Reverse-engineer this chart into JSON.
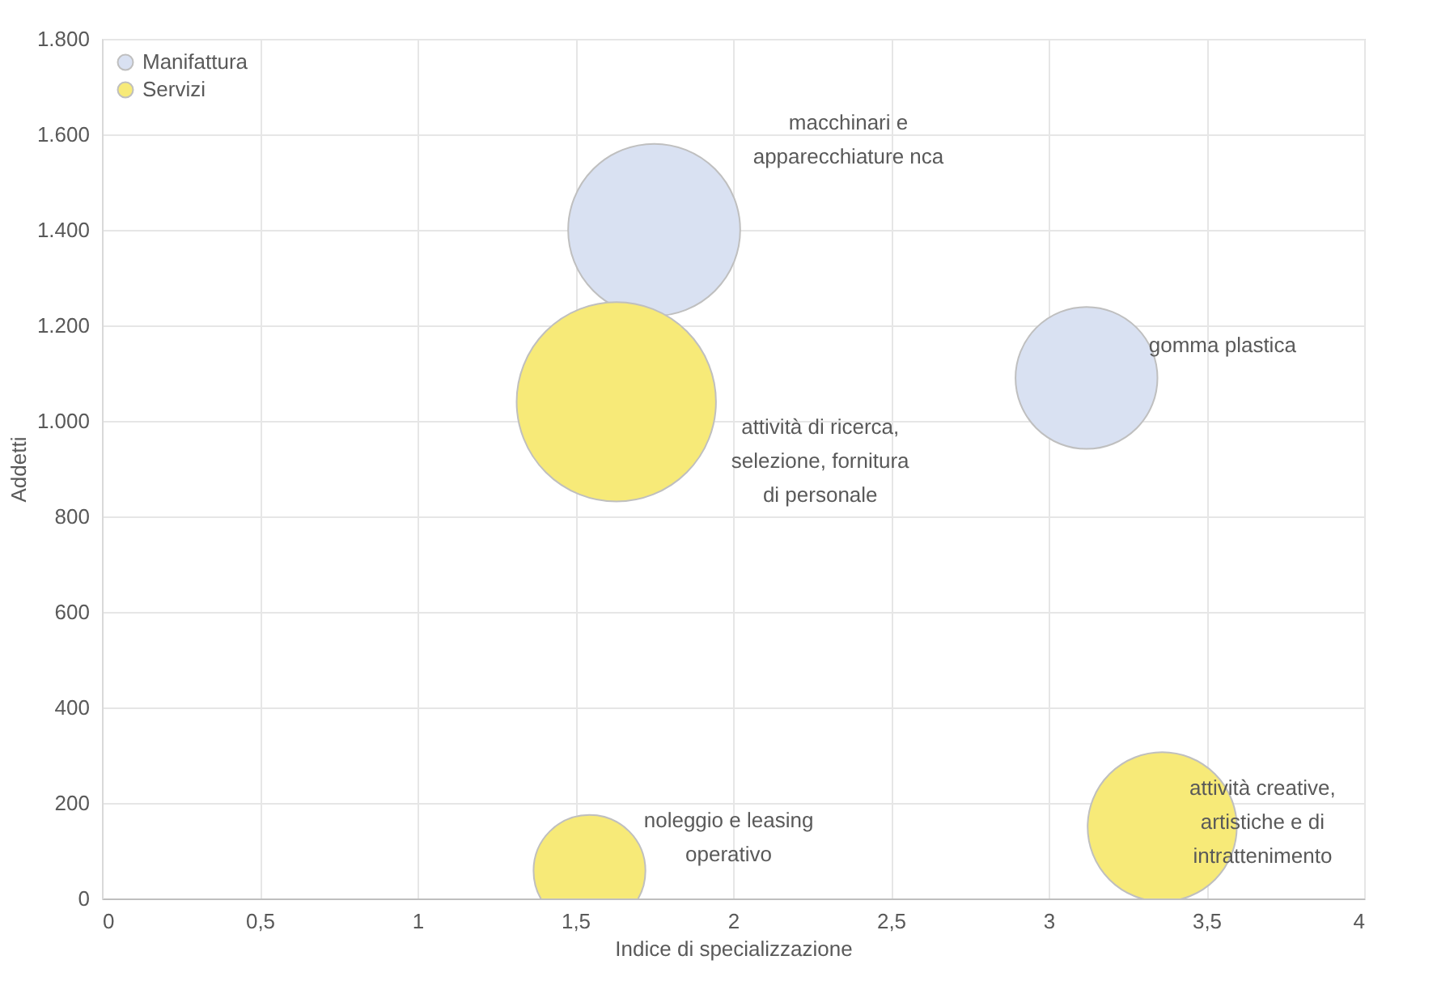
{
  "chart_data": {
    "type": "bubble",
    "xlabel": "Indice di specializzazione",
    "ylabel": "Addetti",
    "xlim": [
      0,
      4
    ],
    "xticks": [
      0,
      {
        "value": 0.5,
        "label": "0,5"
      },
      1,
      {
        "value": 1.5,
        "label": "1,5"
      },
      2,
      {
        "value": 2.5,
        "label": "2,5"
      },
      3,
      {
        "value": 3.5,
        "label": "3,5"
      },
      4
    ],
    "ylim": [
      0,
      1800
    ],
    "yticks": [
      0,
      200,
      400,
      600,
      800,
      {
        "value": 1000,
        "label": "1.000"
      },
      {
        "value": 1200,
        "label": "1.200"
      },
      {
        "value": 1400,
        "label": "1.400"
      },
      {
        "value": 1600,
        "label": "1.600"
      },
      {
        "value": 1800,
        "label": "1.800"
      }
    ],
    "grid": true,
    "legend": "top left",
    "series": [
      {
        "name": "Manifattura",
        "color": "#d9e1f2",
        "x": [
          1.75,
          3.12
        ],
        "values": [
          1400,
          1090
        ],
        "sizes": [
          0.745,
          0.507
        ]
      },
      {
        "name": "Servizi",
        "color": "#f7ea78",
        "x": [
          1.63,
          1.545,
          3.36
        ],
        "values": [
          1040,
          58,
          150
        ],
        "sizes": [
          1,
          0.315,
          0.56
        ]
      }
    ],
    "annotations": [
      "macchinari e\napparecchiature nca",
      "gomma plastica",
      "attività di ricerca,\nselezione, fornitura\ndi personale",
      "noleggio e leasing\noperativo",
      "attività creative,\nartistiche e di\nintrattenimento"
    ]
  }
}
